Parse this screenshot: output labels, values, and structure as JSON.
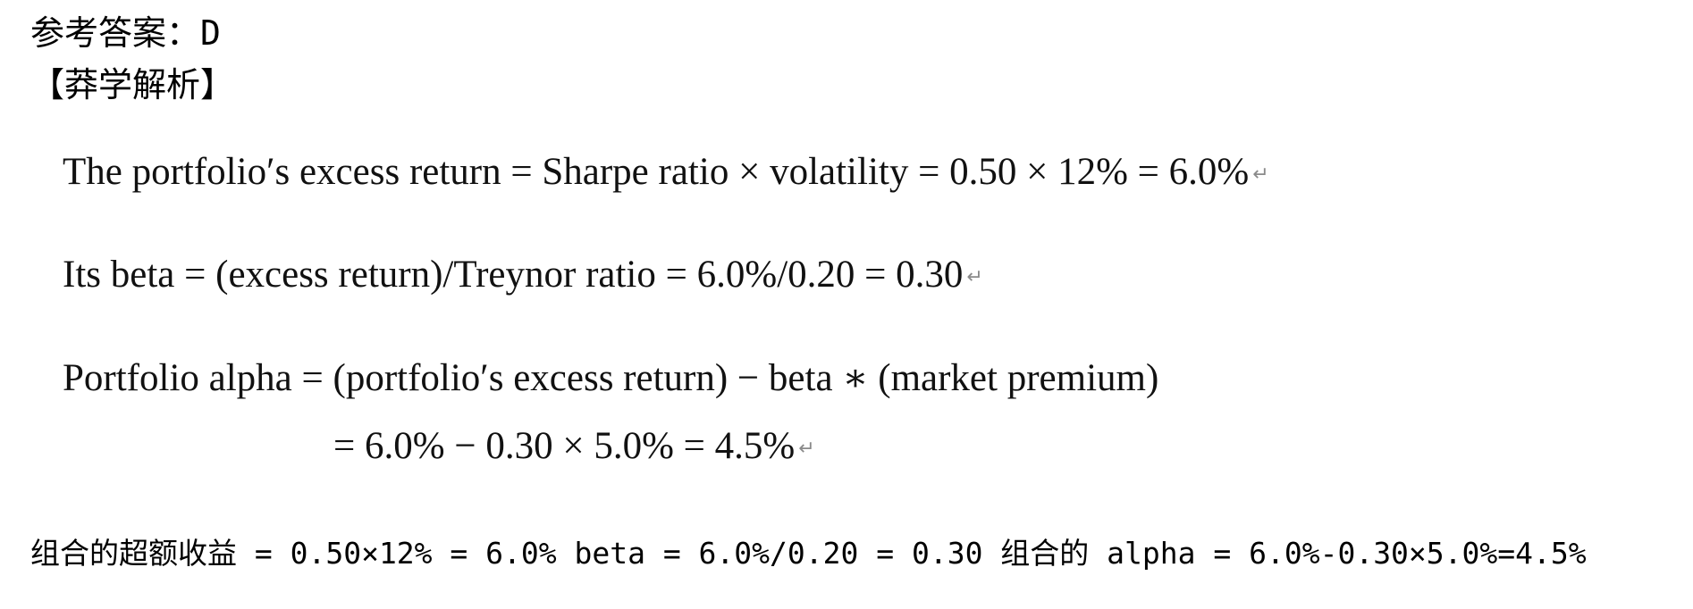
{
  "answer": {
    "text": "参考答案：D"
  },
  "analysis": {
    "heading": "【莽学解析】"
  },
  "equations": [
    {
      "text": "The portfolio′s excess return = Sharpe ratio × volatility = 0.50 × 12% = 6.0%"
    },
    {
      "text": "Its beta = (excess return)/Treynor ratio = 6.0%/0.20 = 0.30"
    },
    {
      "text": "Portfolio alpha = (portfolio′s excess return) − beta ∗ (market premium)"
    },
    {
      "text": "= 6.0% − 0.30 × 5.0% = 4.5%"
    }
  ],
  "return_icon": {
    "icon": "carriage-return-icon",
    "glyph": "↵"
  },
  "summary": {
    "text": "组合的超额收益 = 0.50×12% = 6.0% beta = 6.0%/0.20 = 0.30 组合的 alpha = 6.0%-0.30×5.0%=4.5%"
  }
}
